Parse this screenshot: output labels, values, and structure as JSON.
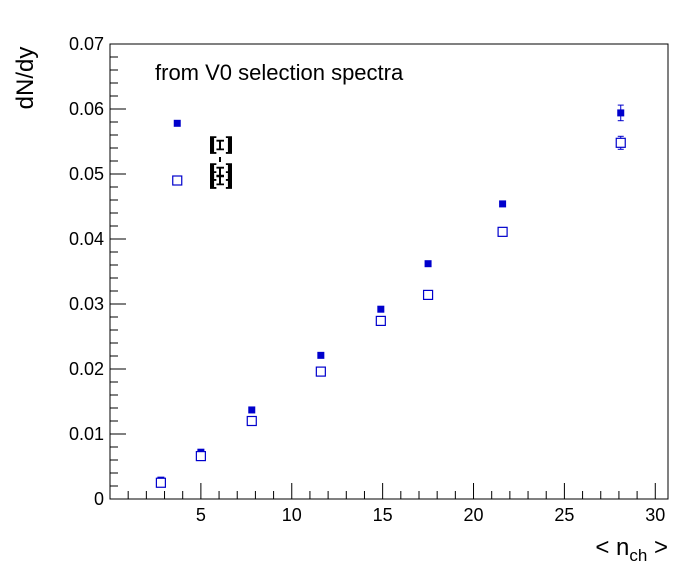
{
  "chart_data": {
    "type": "scatter",
    "title": "",
    "annotation": "from V0 selection spectra",
    "xlabel": "< n",
    "xlabel_sub": "ch",
    "xlabel_suffix": " >",
    "ylabel": "dN/dy",
    "xlim": [
      0,
      30.7
    ],
    "ylim": [
      0,
      0.07
    ],
    "x_ticks": [
      5,
      10,
      15,
      20,
      25,
      30
    ],
    "x_tick_labels": [
      "5",
      "10",
      "15",
      "20",
      "25",
      "30"
    ],
    "y_ticks": [
      0,
      0.01,
      0.02,
      0.03,
      0.04,
      0.05,
      0.06,
      0.07
    ],
    "y_tick_labels": [
      "0",
      "0.01",
      "0.02",
      "0.03",
      "0.04",
      "0.05",
      "0.06",
      "0.07"
    ],
    "grid": false,
    "legend_labels": [
      "Ξ",
      "Ξ",
      "Ξ"
    ],
    "series": [
      {
        "marker": "filled-square",
        "color": "#0000cc",
        "x": [
          2.8,
          5.0,
          7.8,
          11.6,
          14.9,
          17.5,
          21.6,
          28.1
        ],
        "y": [
          0.0029,
          0.0072,
          0.0137,
          0.0221,
          0.0292,
          0.0362,
          0.0454,
          0.0594
        ],
        "err": [
          0.0002,
          0.0002,
          0.0002,
          0.0002,
          0.0003,
          0.0005,
          0.0006,
          0.0012
        ]
      },
      {
        "marker": "open-square",
        "color": "#0000cc",
        "x": [
          2.8,
          5.0,
          7.8,
          11.6,
          14.9,
          17.5,
          21.6,
          28.1
        ],
        "y": [
          0.0025,
          0.0066,
          0.012,
          0.0196,
          0.0274,
          0.0314,
          0.0411,
          0.0548
        ],
        "err": [
          0.0002,
          0.0002,
          0.0002,
          0.0002,
          0.0003,
          0.0003,
          0.0004,
          0.001
        ]
      }
    ],
    "legend_markers": [
      {
        "marker": "filled-square",
        "color": "#0000cc",
        "x": 3.7,
        "y": 0.0578
      },
      {
        "marker": "open-square",
        "color": "#0000cc",
        "x": 3.7,
        "y": 0.049
      }
    ]
  }
}
